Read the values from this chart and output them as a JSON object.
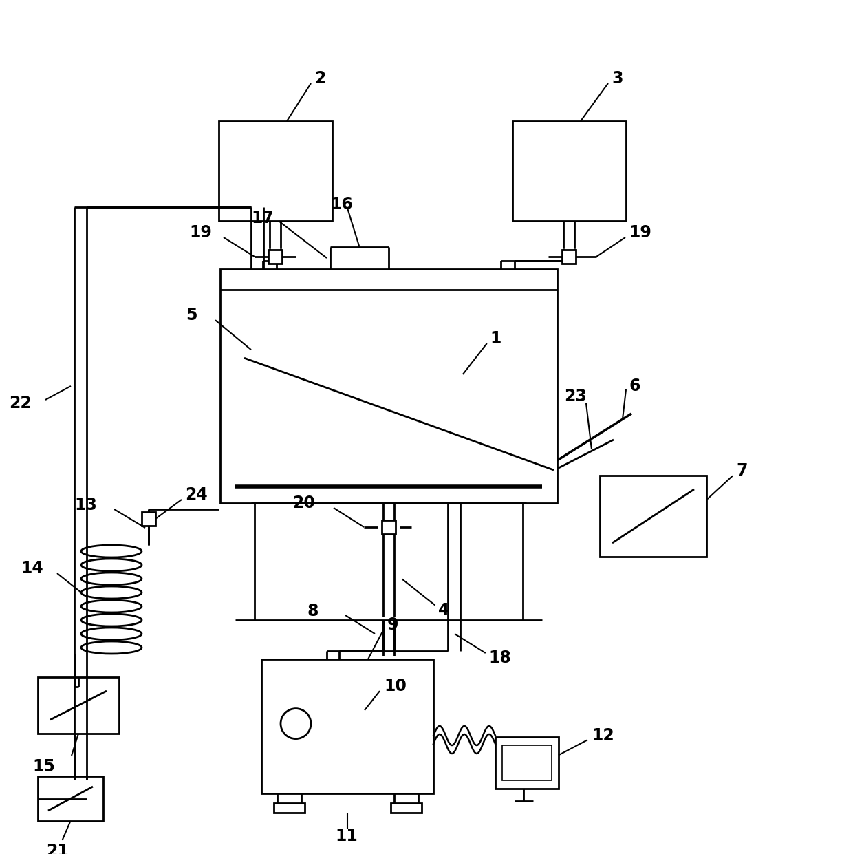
{
  "figsize": [
    12.4,
    12.41
  ],
  "dpi": 100,
  "bg": "#ffffff",
  "lc": "#000000",
  "lw": 2.0,
  "fs": 17,
  "llw": 1.5
}
